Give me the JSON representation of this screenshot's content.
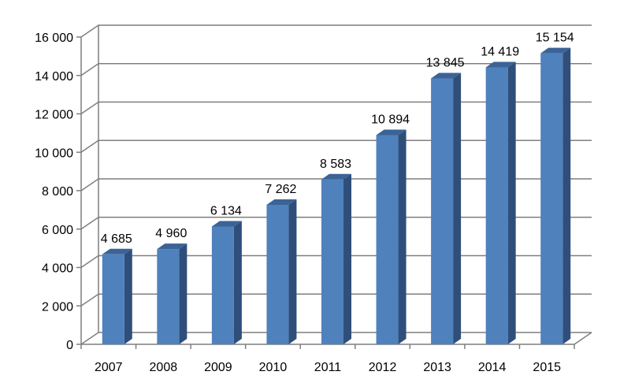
{
  "chart_data": {
    "type": "bar",
    "title": "",
    "xlabel": "",
    "ylabel": "",
    "categories": [
      "2007",
      "2008",
      "2009",
      "2010",
      "2011",
      "2012",
      "2013",
      "2014",
      "2015"
    ],
    "values": [
      4685,
      4960,
      6134,
      7262,
      8583,
      10894,
      13845,
      14419,
      15154
    ],
    "value_labels": [
      "4 685",
      "4 960",
      "6 134",
      "7 262",
      "8 583",
      "10 894",
      "13 845",
      "14 419",
      "15 154"
    ],
    "ylim": [
      0,
      16000
    ],
    "yticks": [
      0,
      2000,
      4000,
      6000,
      8000,
      10000,
      12000,
      14000,
      16000
    ],
    "ytick_labels": [
      "0",
      "2 000",
      "4 000",
      "6 000",
      "8 000",
      "10 000",
      "12 000",
      "14 000",
      "16 000"
    ],
    "grid": true,
    "legend": "none",
    "style": "3d-column",
    "colors": {
      "bar_front": "#4f81bd",
      "bar_side": "#2f4f7a",
      "bar_top": "#3b6396",
      "grid": "#7f7f7f"
    }
  }
}
